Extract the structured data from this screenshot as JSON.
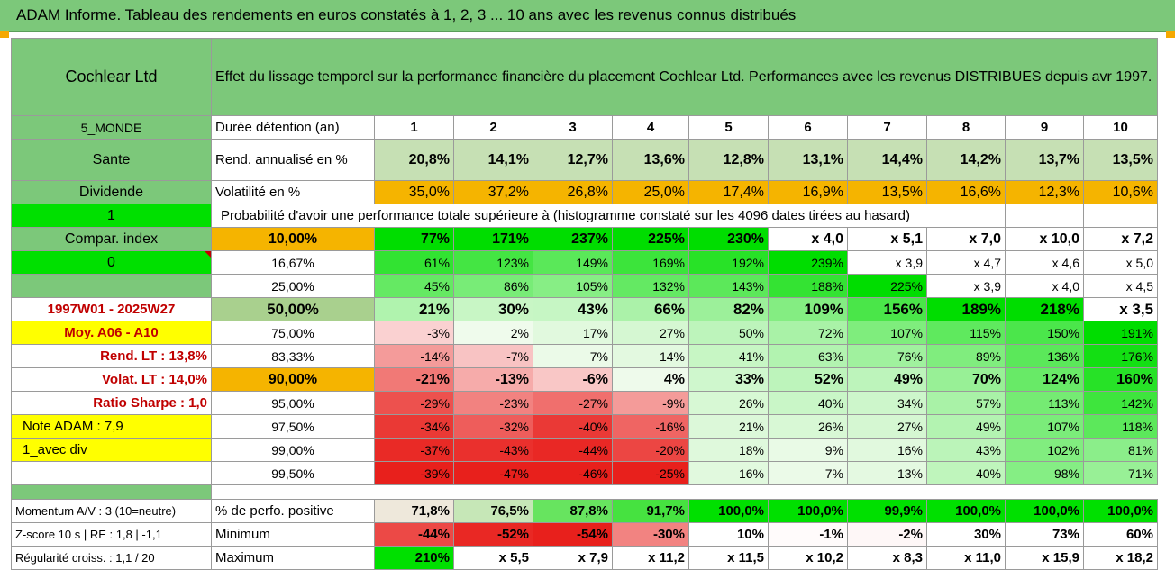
{
  "title": "ADAM Informe. Tableau des rendements en euros constatés à 1, 2, 3 ... 10 ans avec les revenus connus distribués",
  "company": "Cochlear Ltd",
  "description": "Effet du lissage temporel sur la performance financière du placement Cochlear Ltd. Performances avec les revenus DISTRIBUES depuis avr 1997.",
  "left": {
    "region": "5_MONDE",
    "sector": "Sante",
    "dividend": "Dividende",
    "flag": "1",
    "compar": "Compar. index",
    "zero": "0",
    "period": "1997W01 - 2025W27",
    "moy": "Moy. A06 - A10",
    "rend_lt": "Rend. LT :    13,8%",
    "volat_lt": "Volat. LT :    14,0%",
    "sharpe": "Ratio Sharpe :    1,0",
    "note": "Note ADAM : 7,9",
    "avec_div": "1_avec div"
  },
  "header": {
    "duration_label": "Durée détention (an)",
    "years": [
      "1",
      "2",
      "3",
      "4",
      "5",
      "6",
      "7",
      "8",
      "9",
      "10"
    ],
    "rend_label": "Rend. annualisé en %",
    "rend": [
      "20,8%",
      "14,1%",
      "12,7%",
      "13,6%",
      "12,8%",
      "13,1%",
      "14,4%",
      "14,2%",
      "13,7%",
      "13,5%"
    ],
    "vol_label": "Volatilité en %",
    "vol": [
      "35,0%",
      "37,2%",
      "26,8%",
      "25,0%",
      "17,4%",
      "16,9%",
      "13,5%",
      "16,6%",
      "12,3%",
      "10,6%"
    ],
    "prob_label": "Probabilité d'avoir une performance totale supérieure à (histogramme constaté sur les 4096 dates tirées au hasard)"
  },
  "prob_rows": [
    {
      "pct": "10,00%",
      "vals": [
        "77%",
        "171%",
        "237%",
        "225%",
        "230%",
        "x 4,0",
        "x 5,1",
        "x 7,0",
        "x 10,0",
        "x 7,2"
      ]
    },
    {
      "pct": "16,67%",
      "vals": [
        "61%",
        "123%",
        "149%",
        "169%",
        "192%",
        "239%",
        "x 3,9",
        "x 4,7",
        "x 4,6",
        "x 5,0"
      ]
    },
    {
      "pct": "25,00%",
      "vals": [
        "45%",
        "86%",
        "105%",
        "132%",
        "143%",
        "188%",
        "225%",
        "x 3,9",
        "x 4,0",
        "x 4,5"
      ]
    },
    {
      "pct": "50,00%",
      "vals": [
        "21%",
        "30%",
        "43%",
        "66%",
        "82%",
        "109%",
        "156%",
        "189%",
        "218%",
        "x 3,5"
      ]
    },
    {
      "pct": "75,00%",
      "vals": [
        "-3%",
        "2%",
        "17%",
        "27%",
        "50%",
        "72%",
        "107%",
        "115%",
        "150%",
        "191%"
      ]
    },
    {
      "pct": "83,33%",
      "vals": [
        "-14%",
        "-7%",
        "7%",
        "14%",
        "41%",
        "63%",
        "76%",
        "89%",
        "136%",
        "176%"
      ]
    },
    {
      "pct": "90,00%",
      "vals": [
        "-21%",
        "-13%",
        "-6%",
        "4%",
        "33%",
        "52%",
        "49%",
        "70%",
        "124%",
        "160%"
      ]
    },
    {
      "pct": "95,00%",
      "vals": [
        "-29%",
        "-23%",
        "-27%",
        "-9%",
        "26%",
        "40%",
        "34%",
        "57%",
        "113%",
        "142%"
      ]
    },
    {
      "pct": "97,50%",
      "vals": [
        "-34%",
        "-32%",
        "-40%",
        "-16%",
        "21%",
        "26%",
        "27%",
        "49%",
        "107%",
        "118%"
      ]
    },
    {
      "pct": "99,00%",
      "vals": [
        "-37%",
        "-43%",
        "-44%",
        "-20%",
        "18%",
        "9%",
        "16%",
        "43%",
        "102%",
        "81%"
      ]
    },
    {
      "pct": "99,50%",
      "vals": [
        "-39%",
        "-47%",
        "-46%",
        "-25%",
        "16%",
        "7%",
        "13%",
        "40%",
        "98%",
        "71%"
      ]
    }
  ],
  "bottom": {
    "momentum": "Momentum A/V : 3 (10=neutre)",
    "zscore": "Z-score 10 s | RE : 1,8 | -1,1",
    "regularite": "Régularité croiss. : 1,1 / 20",
    "pos_label": "% de perfo. positive",
    "pos": [
      "71,8%",
      "76,5%",
      "87,8%",
      "91,7%",
      "100,0%",
      "100,0%",
      "99,9%",
      "100,0%",
      "100,0%",
      "100,0%"
    ],
    "min_label": "Minimum",
    "min": [
      "-44%",
      "-52%",
      "-54%",
      "-30%",
      "10%",
      "-1%",
      "-2%",
      "30%",
      "73%",
      "60%"
    ],
    "max_label": "Maximum",
    "max": [
      "210%",
      "x 5,5",
      "x 7,9",
      "x 11,2",
      "x 11,5",
      "x 10,2",
      "x 8,3",
      "x 11,0",
      "x 15,9",
      "x 18,2"
    ]
  },
  "colors": {
    "header_green": "#7cc87a",
    "light_green": "#c6e0b4",
    "orange": "#f5b400",
    "yellow": "#ffff00",
    "bright_green": "#00e000",
    "red_text": "#c00000",
    "cell_positive_max": "#00dd00",
    "cell_negative_max": "#e8201c"
  }
}
